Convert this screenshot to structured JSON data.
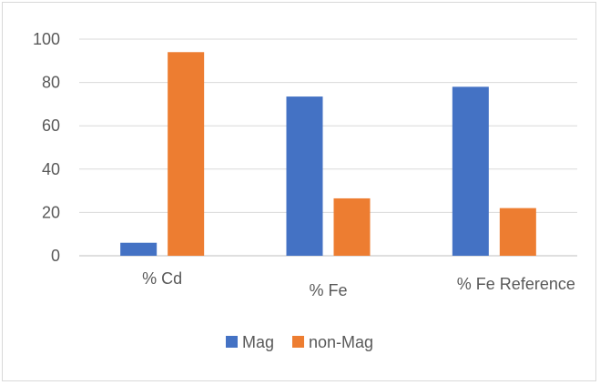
{
  "chart_data": {
    "type": "bar",
    "categories": [
      "% Cd",
      "% Fe",
      "% Fe Reference"
    ],
    "series": [
      {
        "name": "Mag",
        "values": [
          6,
          73.5,
          78
        ],
        "color": "#4472c4"
      },
      {
        "name": "non-Mag",
        "values": [
          94,
          26.5,
          22
        ],
        "color": "#ed7d31"
      }
    ],
    "ylim": [
      0,
      100
    ],
    "yticks": [
      0,
      20,
      40,
      60,
      80,
      100
    ],
    "grid": true,
    "legend_position": "bottom",
    "gridline_color": "#d9d9d9",
    "axis_color": "#bfbfbf",
    "title": "",
    "xlabel": "",
    "ylabel": ""
  }
}
